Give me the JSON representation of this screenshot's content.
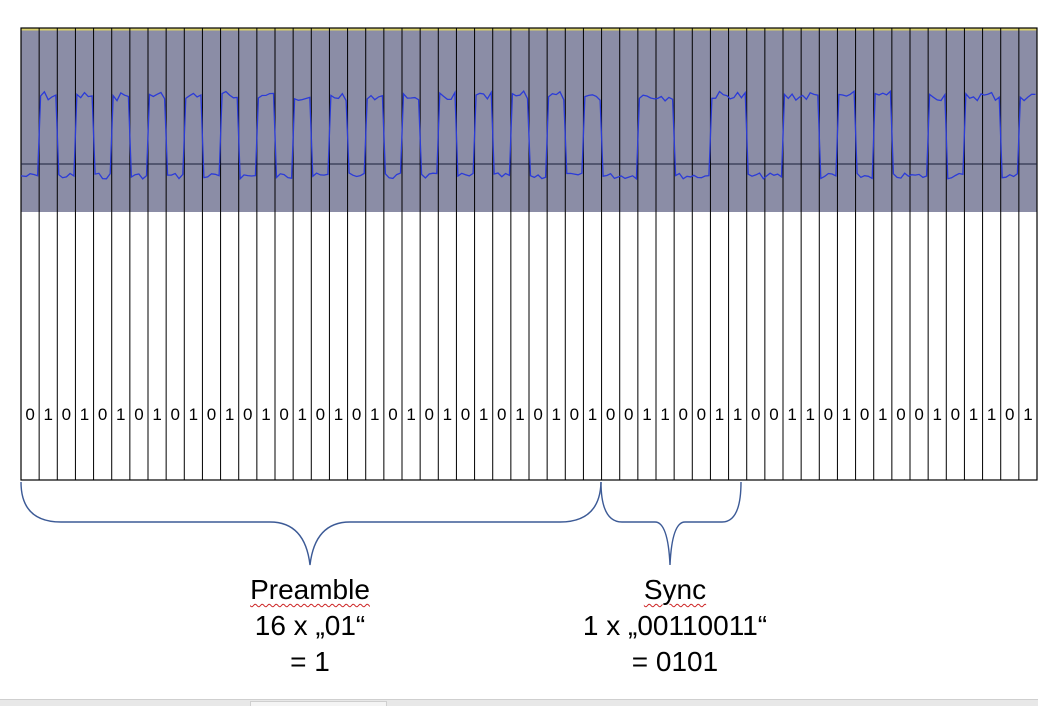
{
  "bits": [
    "0",
    "1",
    "0",
    "1",
    "0",
    "1",
    "0",
    "1",
    "0",
    "1",
    "0",
    "1",
    "0",
    "1",
    "0",
    "1",
    "0",
    "1",
    "0",
    "1",
    "0",
    "1",
    "0",
    "1",
    "0",
    "1",
    "0",
    "1",
    "0",
    "1",
    "0",
    "1",
    "0",
    "0",
    "1",
    "1",
    "0",
    "0",
    "1",
    "1",
    "0",
    "0",
    "1",
    "1",
    "0",
    "1",
    "0",
    "1",
    "0",
    "0",
    "1",
    "0",
    "1",
    "1",
    "0",
    "1"
  ],
  "preamble": {
    "title": "Preamble",
    "count_line": "16 x „01“",
    "value_line": "= 1"
  },
  "sync": {
    "title": "Sync",
    "count_line": "1 x „00110011“",
    "value_line": "= 0101"
  },
  "colors": {
    "signal_panel": "#8b8da6",
    "waveform": "#2b3bd8",
    "brace": "#3c5a96",
    "grid_line": "#000000",
    "top_line": "#d8cf6a"
  }
}
